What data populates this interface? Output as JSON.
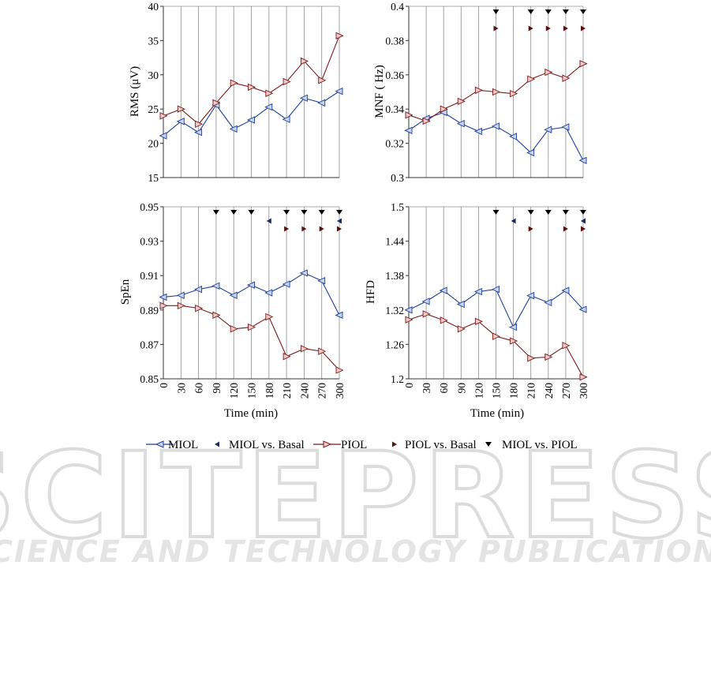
{
  "watermark": {
    "title": "SCITEPRESS",
    "subtitle": "SCIENCE AND TECHNOLOGY PUBLICATIONS"
  },
  "legend": [
    {
      "key": "miol",
      "label": "MIOL",
      "kind": "series"
    },
    {
      "key": "miol_basal",
      "label": "MIOL vs. Basal",
      "kind": "marker"
    },
    {
      "key": "piol",
      "label": "PIOL",
      "kind": "series"
    },
    {
      "key": "piol_basal",
      "label": "PIOL vs. Basal",
      "kind": "marker"
    },
    {
      "key": "miol_piol",
      "label": "MIOL vs. PIOL",
      "kind": "marker"
    }
  ],
  "colors": {
    "miol": "#1f3f99",
    "miol_fill": "#c8d4ee",
    "piol": "#7a1a1a",
    "piol_fill": "#f0c8c8",
    "miol_basal": "#1a2a6a",
    "piol_basal": "#5a1010",
    "miol_piol": "#000000",
    "grid": "#8c8c8c"
  },
  "chart_data": [
    {
      "id": "rms",
      "type": "line",
      "ylabel": "RMS (μV)",
      "xlabel": "",
      "x": [
        0,
        30,
        60,
        90,
        120,
        150,
        180,
        210,
        240,
        270,
        300
      ],
      "ylim": [
        15,
        40
      ],
      "yticks": [
        "15",
        "20",
        "25",
        "30",
        "35",
        "40"
      ],
      "grid": true,
      "series": [
        {
          "name": "MIOL",
          "values": [
            21.1,
            23.2,
            21.6,
            25.6,
            22.1,
            23.4,
            25.3,
            23.5,
            26.6,
            25.9,
            27.6
          ]
        },
        {
          "name": "PIOL",
          "values": [
            24.0,
            25.0,
            22.8,
            25.9,
            28.8,
            28.2,
            27.3,
            29.0,
            32.0,
            29.2,
            35.7
          ]
        }
      ],
      "markers": {
        "miol_piol": [],
        "miol_basal": [],
        "piol_basal": []
      }
    },
    {
      "id": "mnf",
      "type": "line",
      "ylabel": "MNF ( Hz)",
      "xlabel": "",
      "x": [
        0,
        30,
        60,
        90,
        120,
        150,
        180,
        210,
        240,
        270,
        300
      ],
      "ylim": [
        0.3,
        0.4
      ],
      "yticks": [
        "0.3",
        "0.32",
        "0.34",
        "0.36",
        "0.38",
        "0.4"
      ],
      "grid": true,
      "series": [
        {
          "name": "MIOL",
          "values": [
            0.3275,
            0.3345,
            0.338,
            0.3315,
            0.327,
            0.33,
            0.324,
            0.3145,
            0.328,
            0.3295,
            0.31
          ]
        },
        {
          "name": "PIOL",
          "values": [
            0.3365,
            0.333,
            0.34,
            0.3445,
            0.351,
            0.35,
            0.349,
            0.3575,
            0.3615,
            0.358,
            0.3665
          ]
        }
      ],
      "markers": {
        "miol_piol": [
          150,
          210,
          240,
          270,
          300
        ],
        "miol_basal": [],
        "piol_basal": [
          150,
          210,
          240,
          270,
          300
        ]
      }
    },
    {
      "id": "spen",
      "type": "line",
      "ylabel": "SpEn",
      "xlabel": "Time (min)",
      "x": [
        0,
        30,
        60,
        90,
        120,
        150,
        180,
        210,
        240,
        270,
        300
      ],
      "ylim": [
        0.85,
        0.95
      ],
      "yticks": [
        "0.85",
        "0.87",
        "0.89",
        "0.91",
        "0.93",
        "0.95"
      ],
      "xticks": [
        "0",
        "30",
        "60",
        "90",
        "120",
        "150",
        "180",
        "210",
        "240",
        "270",
        "300"
      ],
      "grid": true,
      "series": [
        {
          "name": "MIOL",
          "values": [
            0.8975,
            0.8985,
            0.902,
            0.904,
            0.8985,
            0.9045,
            0.9,
            0.905,
            0.9115,
            0.907,
            0.887
          ]
        },
        {
          "name": "PIOL",
          "values": [
            0.8925,
            0.8925,
            0.891,
            0.887,
            0.879,
            0.88,
            0.886,
            0.863,
            0.8675,
            0.866,
            0.855
          ]
        }
      ],
      "markers": {
        "miol_piol": [
          90,
          120,
          150,
          210,
          240,
          270,
          300
        ],
        "miol_basal": [
          180,
          300
        ],
        "piol_basal": [
          210,
          240,
          270,
          300
        ]
      }
    },
    {
      "id": "hfd",
      "type": "line",
      "ylabel": "HFD",
      "xlabel": "Time (min)",
      "x": [
        0,
        30,
        60,
        90,
        120,
        150,
        180,
        210,
        240,
        270,
        300
      ],
      "ylim": [
        1.2,
        1.5
      ],
      "yticks": [
        "1.2",
        "1.26",
        "1.32",
        "1.38",
        "1.44",
        "1.5"
      ],
      "xticks": [
        "0",
        "30",
        "60",
        "90",
        "120",
        "150",
        "180",
        "210",
        "240",
        "270",
        "300"
      ],
      "grid": true,
      "series": [
        {
          "name": "MIOL",
          "values": [
            1.32,
            1.335,
            1.354,
            1.33,
            1.352,
            1.356,
            1.29,
            1.345,
            1.333,
            1.354,
            1.321
          ]
        },
        {
          "name": "PIOL",
          "values": [
            1.303,
            1.313,
            1.302,
            1.287,
            1.3,
            1.274,
            1.266,
            1.236,
            1.238,
            1.258,
            1.203
          ]
        }
      ],
      "markers": {
        "miol_piol": [
          150,
          210,
          240,
          270,
          300
        ],
        "miol_basal": [
          180,
          300
        ],
        "piol_basal": [
          210,
          270,
          300
        ]
      }
    }
  ]
}
